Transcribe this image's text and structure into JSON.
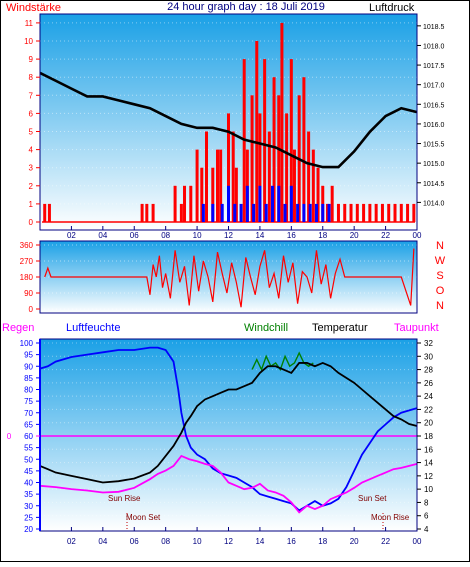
{
  "header": {
    "wind_label": "Windstärke",
    "title": "24 hour graph day : 18 Juli 2019",
    "pressure_label": "Luftdruck"
  },
  "colors": {
    "frame": "#000080",
    "plot_top": "#1aa0e6",
    "plot_bottom": "#ffffff",
    "wind_gust": "#ff0000",
    "wind_avg": "#0000ff",
    "pressure": "#000000",
    "humidity": "#0000ff",
    "temperature": "#000000",
    "windchill": "#008000",
    "dewpoint": "#ff00ff",
    "rain": "#ff00ff",
    "wind_left_axis": "#ff0000",
    "hum_left_axis": "#0000ff"
  },
  "hour_ticks": [
    "02",
    "04",
    "06",
    "08",
    "10",
    "12",
    "14",
    "16",
    "18",
    "20",
    "22",
    "00"
  ],
  "direction_labels": [
    "N",
    "W",
    "S",
    "O",
    "N"
  ],
  "legend": {
    "rain": "Regen",
    "humidity": "Luftfeuchte",
    "windchill": "Windchill",
    "temperature": "Temperatur",
    "dewpoint": "Taupunkt"
  },
  "astro": {
    "sun_rise": "Sun Rise",
    "sun_set": "Sun Set",
    "moon_set": "Moon Set",
    "moon_rise": "Moon Rise"
  },
  "chart_data": [
    {
      "type": "line",
      "title": "24 hour graph day : 18 Juli 2019",
      "x_unit": "hour",
      "x_ticks": [
        "02",
        "04",
        "06",
        "08",
        "10",
        "12",
        "14",
        "16",
        "18",
        "20",
        "22",
        "00"
      ],
      "left_axis": {
        "label": "Windstärke",
        "ylim": [
          0,
          11
        ],
        "ticks": [
          0,
          1,
          2,
          3,
          4,
          5,
          6,
          7,
          8,
          9,
          10,
          11
        ]
      },
      "right_axis": {
        "label": "Luftdruck",
        "ylim": [
          1013.5,
          1018.7
        ],
        "ticks": [
          1014,
          1014.5,
          1015,
          1015.5,
          1016,
          1016.5,
          1017,
          1017.5,
          1018,
          1018.5
        ]
      },
      "series": [
        {
          "name": "Luftdruck",
          "axis": "right",
          "x": [
            0,
            1,
            2,
            3,
            4,
            5,
            6,
            7,
            8,
            9,
            10,
            11,
            12,
            13,
            14,
            15,
            16,
            17,
            18,
            19,
            20,
            21,
            22,
            23,
            24
          ],
          "values": [
            1017.3,
            1017.1,
            1016.9,
            1016.7,
            1016.7,
            1016.6,
            1016.5,
            1016.4,
            1016.2,
            1016.0,
            1015.9,
            1015.9,
            1015.8,
            1015.6,
            1015.5,
            1015.4,
            1015.2,
            1015.0,
            1014.9,
            1014.9,
            1015.3,
            1015.8,
            1016.2,
            1016.4,
            1016.3
          ]
        }
      ],
      "gust_bars": {
        "hours": [
          0.3,
          0.6,
          6.5,
          6.8,
          7.2,
          8.6,
          9.0,
          9.2,
          9.6,
          10.0,
          10.3,
          10.6,
          11.0,
          11.3,
          11.5,
          12.0,
          12.3,
          12.5,
          13.0,
          13.2,
          13.5,
          13.8,
          14.0,
          14.3,
          14.6,
          14.9,
          15.2,
          15.4,
          15.7,
          16.0,
          16.2,
          16.5,
          16.8,
          17.1,
          17.4,
          17.7,
          18.0,
          18.3,
          18.6,
          19.0,
          19.4,
          19.8,
          20.2,
          20.6,
          21.0,
          21.4,
          21.8,
          22.2,
          22.6,
          23.0,
          23.4,
          23.8
        ],
        "values": [
          1,
          1,
          1,
          1,
          1,
          2,
          1,
          2,
          2,
          4,
          3,
          5,
          3,
          4,
          4,
          6,
          5,
          3,
          9,
          4,
          7,
          10,
          6,
          9,
          5,
          8,
          7,
          11,
          6,
          9,
          4,
          7,
          8,
          5,
          4,
          3,
          2,
          1,
          2,
          1,
          1,
          1,
          1,
          1,
          1,
          1,
          1,
          1,
          1,
          1,
          1,
          1
        ]
      },
      "avg_bars": {
        "hours": [
          10.4,
          11.0,
          11.6,
          12.0,
          12.4,
          12.8,
          13.2,
          13.6,
          14.0,
          14.4,
          14.8,
          15.2,
          15.6,
          16.0,
          16.4,
          16.8,
          17.2,
          17.6,
          18.0,
          18.4
        ],
        "values": [
          1,
          1,
          1,
          2,
          1,
          1,
          2,
          1,
          2,
          1,
          2,
          2,
          1,
          2,
          1,
          1,
          1,
          1,
          1,
          1
        ]
      }
    },
    {
      "type": "line",
      "title": "",
      "x_unit": "hour",
      "ylim": [
        0,
        360
      ],
      "yticks": [
        0,
        90,
        180,
        270,
        360
      ],
      "series": [
        {
          "name": "",
          "x": [
            0.3,
            0.5,
            0.7,
            6.8,
            7.0,
            7.2,
            7.4,
            7.6,
            7.8,
            8.0,
            8.3,
            8.6,
            8.9,
            9.2,
            9.5,
            9.8,
            10.1,
            10.4,
            10.7,
            11.0,
            11.3,
            11.6,
            11.9,
            12.2,
            12.5,
            12.8,
            13.1,
            13.4,
            13.7,
            14.0,
            14.3,
            14.6,
            14.9,
            15.2,
            15.5,
            15.8,
            16.1,
            16.4,
            16.7,
            17.0,
            17.3,
            17.6,
            17.9,
            18.2,
            18.5,
            18.8,
            19.1,
            19.4,
            20.0,
            20.6,
            21.2,
            21.8,
            22.4,
            23.0,
            23.6,
            23.8
          ],
          "values": [
            180,
            230,
            180,
            180,
            80,
            250,
            180,
            300,
            120,
            200,
            60,
            330,
            150,
            240,
            20,
            300,
            100,
            270,
            180,
            40,
            320,
            200,
            90,
            260,
            150,
            10,
            290,
            180,
            80,
            240,
            330,
            120,
            200,
            60,
            300,
            150,
            260,
            30,
            210,
            180,
            90,
            330,
            140,
            250,
            60,
            200,
            280,
            180,
            180,
            180,
            180,
            180,
            180,
            180,
            20,
            340
          ]
        }
      ]
    },
    {
      "type": "line",
      "title": "",
      "x_unit": "hour",
      "left_axis": {
        "label": "Luftfeuchte",
        "ylim": [
          20,
          100
        ],
        "ticks": [
          20,
          25,
          30,
          35,
          40,
          45,
          50,
          55,
          60,
          65,
          70,
          75,
          80,
          85,
          90,
          95,
          100
        ]
      },
      "right_axis": {
        "ylim": [
          4,
          32
        ],
        "ticks": [
          4,
          6,
          8,
          10,
          12,
          14,
          16,
          18,
          20,
          22,
          24,
          26,
          28,
          30,
          32
        ]
      },
      "rain_axis": {
        "label": "Regen",
        "ticks": [
          0
        ]
      },
      "series": [
        {
          "name": "Luftfeuchte",
          "axis": "left",
          "x": [
            0,
            0.5,
            1,
            2,
            3,
            4,
            5,
            6,
            7,
            7.5,
            8,
            8.5,
            8.8,
            9,
            9.3,
            9.6,
            10,
            10.5,
            11,
            11.5,
            12,
            12.5,
            13,
            13.5,
            14,
            14.5,
            15,
            15.5,
            16,
            16.5,
            17,
            17.5,
            18,
            18.5,
            19,
            19.5,
            20,
            20.5,
            21,
            21.5,
            22,
            22.5,
            23,
            23.5,
            24
          ],
          "values": [
            89,
            90,
            92,
            94,
            95,
            96,
            97,
            97,
            98,
            98,
            97,
            92,
            80,
            70,
            60,
            55,
            52,
            50,
            46,
            44,
            43,
            42,
            40,
            38,
            35,
            34,
            33,
            32,
            31,
            28,
            30,
            32,
            30,
            31,
            33,
            38,
            45,
            52,
            57,
            62,
            65,
            68,
            70,
            71,
            72
          ]
        },
        {
          "name": "Temperatur",
          "axis": "right",
          "x": [
            0,
            0.5,
            1,
            2,
            3,
            4,
            5,
            6,
            7,
            7.5,
            8,
            8.5,
            9,
            9.3,
            9.6,
            10,
            10.5,
            11,
            11.5,
            12,
            12.5,
            13,
            13.5,
            14,
            14.5,
            15,
            15.5,
            16,
            16.5,
            17,
            17.5,
            18,
            18.5,
            19,
            20,
            20.5,
            21,
            21.5,
            22,
            22.5,
            23,
            23.5,
            24
          ],
          "values": [
            13.5,
            13.0,
            12.5,
            12.0,
            11.5,
            11.0,
            11.2,
            11.6,
            12.5,
            13.5,
            15,
            16.5,
            18.5,
            20,
            21,
            22.5,
            23.5,
            24,
            24.5,
            25,
            25,
            25.5,
            26,
            27.5,
            28.5,
            28.5,
            28,
            27.5,
            29,
            29,
            28.5,
            29,
            28.5,
            27.5,
            26,
            25,
            24,
            23,
            22,
            21,
            20.5,
            19.8,
            19.5
          ]
        },
        {
          "name": "Windchill",
          "axis": "right",
          "x": [
            13.5,
            13.8,
            14.1,
            14.4,
            14.7,
            15.0,
            15.3,
            15.6,
            15.9,
            16.2,
            16.5,
            16.8,
            17.1,
            17.4
          ],
          "values": [
            28,
            29.5,
            28,
            30,
            28.5,
            29,
            28,
            30,
            28.5,
            29,
            30.5,
            29,
            28.5,
            29
          ]
        },
        {
          "name": "Taupunkt",
          "axis": "right",
          "x": [
            0,
            1,
            2,
            3,
            4,
            5,
            6,
            7,
            7.5,
            8,
            8.5,
            9,
            9.5,
            10,
            10.5,
            11,
            11.5,
            12,
            12.5,
            13,
            13.5,
            14,
            14.5,
            15,
            15.5,
            16,
            16.5,
            17,
            17.5,
            18,
            18.5,
            19,
            19.5,
            20,
            20.5,
            21,
            21.5,
            22,
            22.5,
            23,
            23.5,
            24
          ],
          "values": [
            10.5,
            10.3,
            10,
            9.8,
            9.5,
            9.6,
            10.2,
            11.5,
            12.3,
            12.8,
            13.5,
            15,
            14.5,
            14.2,
            13.8,
            13.5,
            12.5,
            11,
            10.5,
            10,
            10.2,
            10.8,
            9.8,
            9.5,
            9,
            8,
            6.5,
            7.5,
            7,
            7.5,
            8.5,
            9,
            9.5,
            10.2,
            11,
            11.5,
            12,
            12.5,
            13,
            13.2,
            13.5,
            13.8
          ]
        },
        {
          "name": "Regen",
          "axis": "rain",
          "x": [
            0,
            24
          ],
          "values": [
            0,
            0
          ]
        }
      ]
    }
  ]
}
